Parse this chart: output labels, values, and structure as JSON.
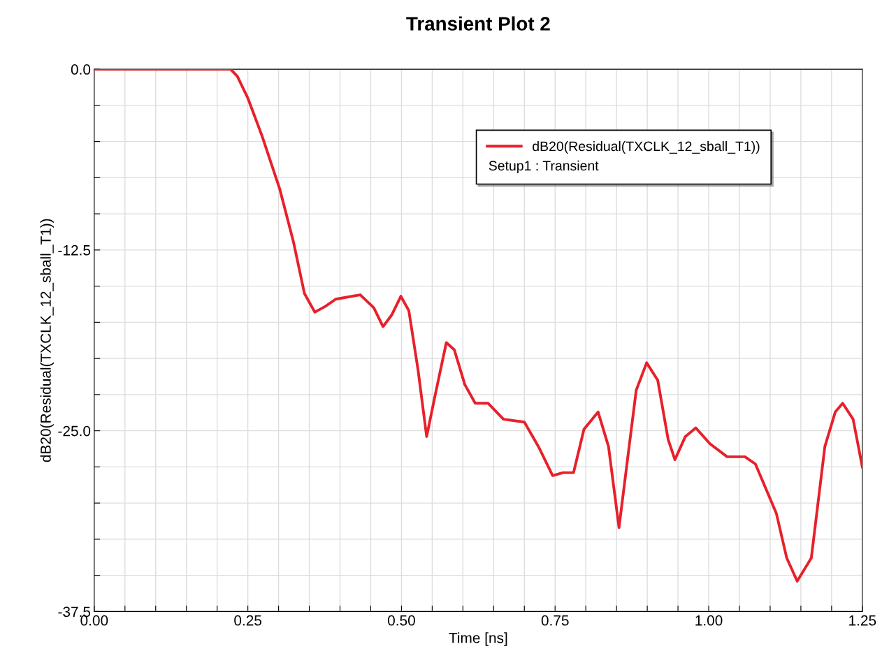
{
  "chart_data": {
    "type": "line",
    "title": "Transient Plot 2",
    "xlabel": "Time [ns]",
    "ylabel": "dB20(Residual(TXCLK_12_sball_T1))",
    "annotations": [
      "Setup1 : Transient"
    ],
    "series": [
      {
        "name": "dB20(Residual(TXCLK_12_sball_T1))",
        "color": "#e8202a",
        "x": [
          0,
          0.222,
          0.233,
          0.25,
          0.273,
          0.302,
          0.324,
          0.342,
          0.359,
          0.376,
          0.393,
          0.433,
          0.455,
          0.47,
          0.484,
          0.499,
          0.512,
          0.527,
          0.541,
          0.554,
          0.573,
          0.586,
          0.603,
          0.62,
          0.641,
          0.666,
          0.7,
          0.723,
          0.746,
          0.763,
          0.78,
          0.797,
          0.82,
          0.837,
          0.854,
          0.869,
          0.882,
          0.899,
          0.917,
          0.934,
          0.945,
          0.962,
          0.979,
          1.002,
          1.03,
          1.059,
          1.076,
          1.11,
          1.127,
          1.144,
          1.167,
          1.189,
          1.206,
          1.218,
          1.235,
          1.25
        ],
        "values": [
          0,
          0,
          -0.5,
          -2.0,
          -4.6,
          -8.3,
          -11.9,
          -15.5,
          -16.8,
          -16.4,
          -15.9,
          -15.6,
          -16.5,
          -17.8,
          -17.0,
          -15.7,
          -16.7,
          -20.8,
          -25.4,
          -22.7,
          -18.9,
          -19.4,
          -21.8,
          -23.1,
          -23.1,
          -24.2,
          -24.4,
          -26.1,
          -28.1,
          -27.9,
          -27.9,
          -24.9,
          -23.7,
          -26.1,
          -31.7,
          -26.6,
          -22.2,
          -20.3,
          -21.5,
          -25.6,
          -27.0,
          -25.4,
          -24.8,
          -25.9,
          -26.8,
          -26.8,
          -27.3,
          -30.7,
          -33.8,
          -35.4,
          -33.8,
          -26.1,
          -23.7,
          -23.1,
          -24.2,
          -27.5
        ]
      }
    ],
    "xlim": [
      0,
      1.25
    ],
    "xticks": [
      {
        "value": 0,
        "label": "0.00"
      },
      {
        "value": 0.05,
        "label": null
      },
      {
        "value": 0.1,
        "label": null
      },
      {
        "value": 0.15,
        "label": null
      },
      {
        "value": 0.2,
        "label": null
      },
      {
        "value": 0.25,
        "label": "0.25"
      },
      {
        "value": 0.3,
        "label": null
      },
      {
        "value": 0.35,
        "label": null
      },
      {
        "value": 0.4,
        "label": null
      },
      {
        "value": 0.45,
        "label": null
      },
      {
        "value": 0.5,
        "label": "0.50"
      },
      {
        "value": 0.55,
        "label": null
      },
      {
        "value": 0.6,
        "label": null
      },
      {
        "value": 0.65,
        "label": null
      },
      {
        "value": 0.7,
        "label": null
      },
      {
        "value": 0.75,
        "label": "0.75"
      },
      {
        "value": 0.8,
        "label": null
      },
      {
        "value": 0.85,
        "label": null
      },
      {
        "value": 0.9,
        "label": null
      },
      {
        "value": 0.95,
        "label": null
      },
      {
        "value": 1.0,
        "label": "1.00"
      },
      {
        "value": 1.05,
        "label": null
      },
      {
        "value": 1.1,
        "label": null
      },
      {
        "value": 1.15,
        "label": null
      },
      {
        "value": 1.2,
        "label": null
      },
      {
        "value": 1.25,
        "label": "1.25"
      }
    ],
    "ylim": [
      -37.5,
      0
    ],
    "yticks": [
      {
        "value": -37.5,
        "label": "-37.5"
      },
      {
        "value": -35,
        "label": null
      },
      {
        "value": -32.5,
        "label": null
      },
      {
        "value": -30,
        "label": null
      },
      {
        "value": -27.5,
        "label": null
      },
      {
        "value": -25,
        "label": "-25.0"
      },
      {
        "value": -22.5,
        "label": null
      },
      {
        "value": -20,
        "label": null
      },
      {
        "value": -17.5,
        "label": null
      },
      {
        "value": -15,
        "label": null
      },
      {
        "value": -12.5,
        "label": "-12.5"
      },
      {
        "value": -10,
        "label": null
      },
      {
        "value": -7.5,
        "label": null
      },
      {
        "value": -5,
        "label": null
      },
      {
        "value": -2.5,
        "label": null
      },
      {
        "value": 0,
        "label": "0.0"
      }
    ],
    "grid": true,
    "legend": "top right",
    "marker": "none",
    "line_style": "solid"
  }
}
